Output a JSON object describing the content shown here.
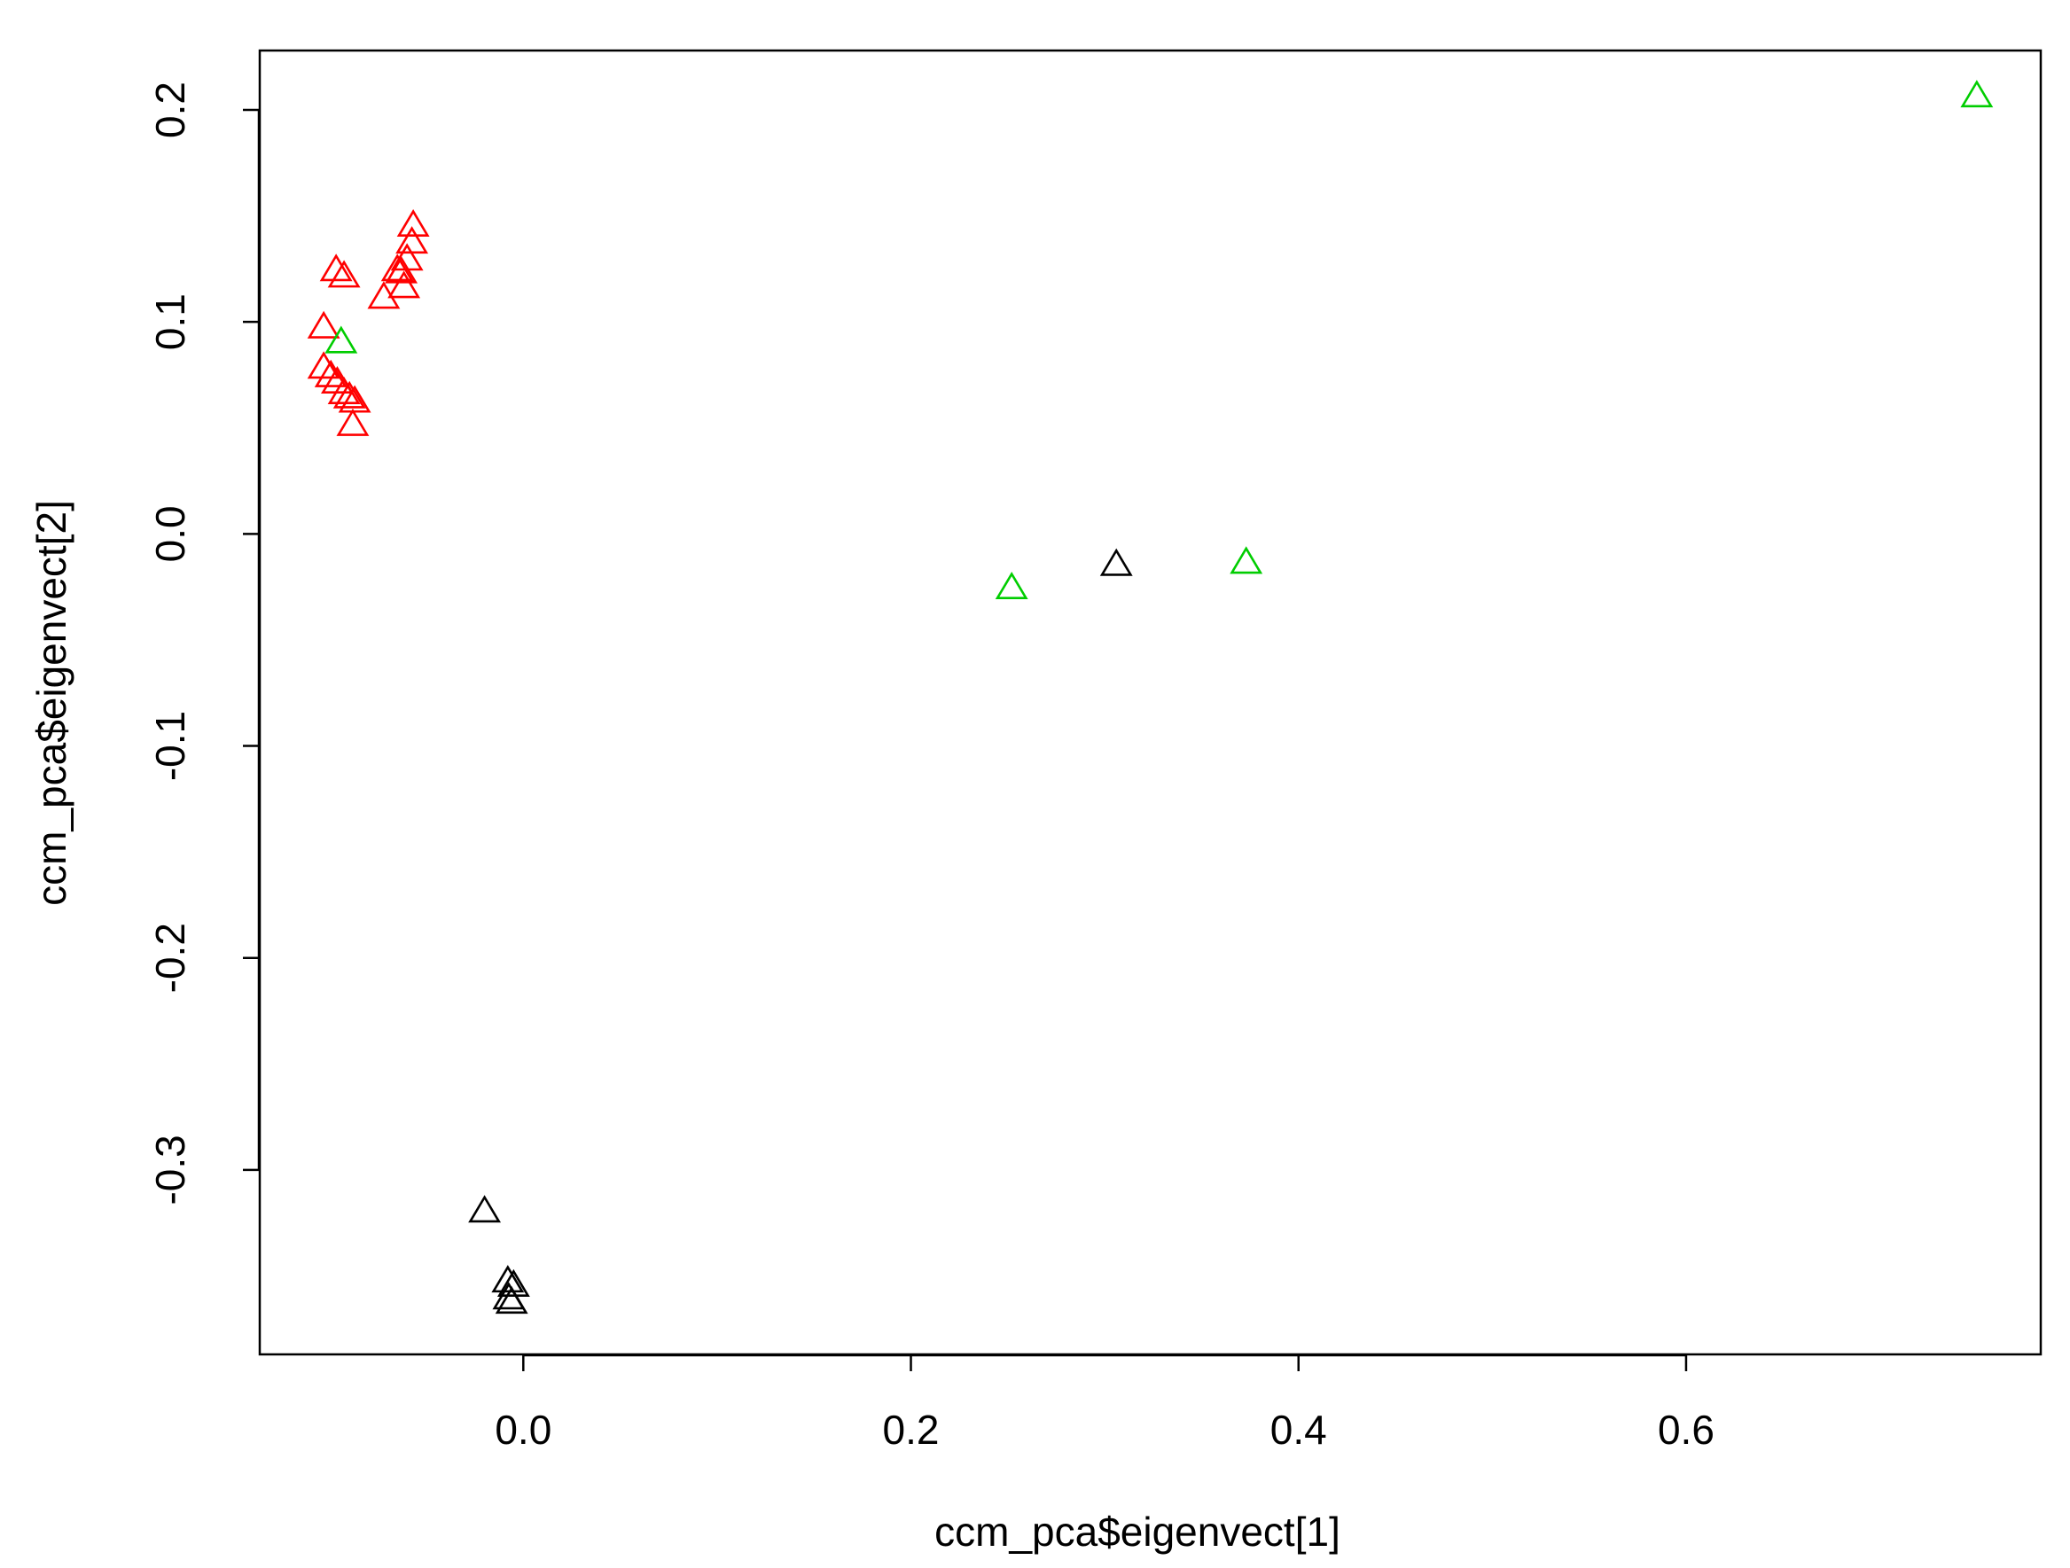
{
  "chart_data": {
    "type": "scatter",
    "x_label": "ccm_pca$eigenvect[1]",
    "y_label": "ccm_pca$eigenvect[2]",
    "xlim": [
      -0.136,
      0.783
    ],
    "ylim": [
      -0.387,
      0.228
    ],
    "xticks": [
      {
        "value": 0,
        "label": "0.0"
      },
      0.2,
      0.4,
      0.6
    ],
    "yticks": [
      -0.3,
      -0.2,
      -0.1,
      {
        "value": 0,
        "label": "0.0"
      },
      0.1,
      0.2
    ],
    "marker": "triangle",
    "series": [
      {
        "color": "#ff0000",
        "x": [
          -0.0568,
          -0.0575,
          -0.06,
          -0.063,
          -0.0966,
          -0.0925,
          -0.103,
          -0.072,
          -0.0616,
          -0.065,
          -0.103,
          -0.0993,
          -0.096,
          -0.0925,
          -0.0897,
          -0.087,
          -0.088
        ],
        "values": [
          0.145,
          0.137,
          0.129,
          0.123,
          0.124,
          0.121,
          0.097,
          0.111,
          0.116,
          0.124,
          0.078,
          0.074,
          0.071,
          0.066,
          0.064,
          0.062,
          0.051
        ]
      },
      {
        "color": "#00cd00",
        "x": [
          -0.094,
          0.252,
          0.373,
          0.75
        ],
        "values": [
          0.09,
          -0.026,
          -0.014,
          0.206
        ]
      },
      {
        "color": "#000000",
        "x": [
          0.306,
          -0.02,
          -0.008,
          -0.005,
          -0.0075,
          -0.006
        ],
        "values": [
          -0.015,
          -0.32,
          -0.353,
          -0.355,
          -0.361,
          -0.363
        ]
      }
    ]
  }
}
